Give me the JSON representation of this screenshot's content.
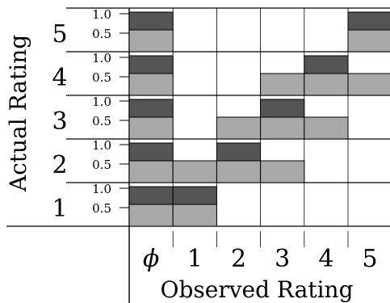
{
  "chart_data": {
    "type": "bar",
    "xlabel": "Observed Rating",
    "ylabel": "Actual Rating",
    "x_categories": [
      "ϕ",
      "1",
      "2",
      "3",
      "4",
      "5"
    ],
    "row_categories": [
      "5",
      "4",
      "3",
      "2",
      "1"
    ],
    "sub_ticks": [
      "1.0",
      "0.5"
    ],
    "series": [
      {
        "name": "",
        "color": "#555555"
      },
      {
        "name": "",
        "color": "#a9a9a9"
      }
    ],
    "rows": [
      {
        "actual": "5",
        "values": [
          [
            1,
            0.5
          ],
          [
            0,
            0
          ],
          [
            0,
            0
          ],
          [
            0,
            0
          ],
          [
            0,
            0
          ],
          [
            1,
            0.5
          ]
        ]
      },
      {
        "actual": "4",
        "values": [
          [
            1,
            0.5
          ],
          [
            0,
            0
          ],
          [
            0,
            0
          ],
          [
            0,
            0.5
          ],
          [
            1,
            0.5
          ],
          [
            0,
            0.5
          ]
        ]
      },
      {
        "actual": "3",
        "values": [
          [
            1,
            0.5
          ],
          [
            0,
            0
          ],
          [
            0,
            0.5
          ],
          [
            1,
            0.5
          ],
          [
            0,
            0.5
          ],
          [
            0,
            0
          ]
        ]
      },
      {
        "actual": "2",
        "values": [
          [
            1,
            0.5
          ],
          [
            0,
            0.5
          ],
          [
            1,
            0.5
          ],
          [
            0,
            0.5
          ],
          [
            0,
            0
          ],
          [
            0,
            0
          ]
        ]
      },
      {
        "actual": "1",
        "values": [
          [
            1,
            0.5
          ],
          [
            1,
            0.5
          ],
          [
            0,
            0
          ],
          [
            0,
            0
          ],
          [
            0,
            0
          ],
          [
            0,
            0
          ]
        ]
      }
    ]
  }
}
